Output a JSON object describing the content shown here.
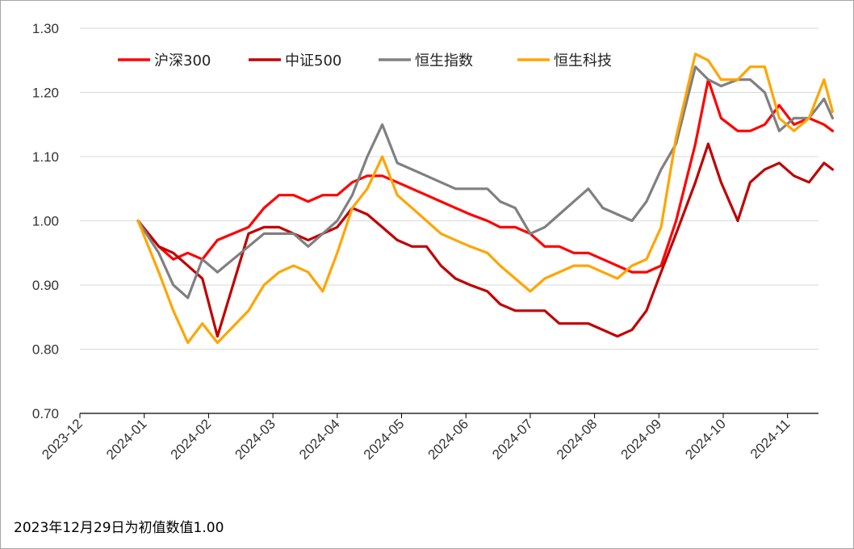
{
  "footnote": "2023年12月29日为初值数值1.00",
  "chart_data": {
    "type": "line",
    "title": "",
    "xlabel": "",
    "ylabel": "",
    "ylim": [
      0.7,
      1.3
    ],
    "yticks": [
      "0.70",
      "0.80",
      "0.90",
      "1.00",
      "1.10",
      "1.20",
      "1.30"
    ],
    "ytick_values": [
      0.7,
      0.8,
      0.9,
      1.0,
      1.1,
      1.2,
      1.3
    ],
    "xticks": [
      "2023-12",
      "2024-01",
      "2024-02",
      "2024-03",
      "2024-04",
      "2024-05",
      "2024-06",
      "2024-07",
      "2024-08",
      "2024-09",
      "2024-10",
      "2024-11"
    ],
    "grid": "horizontal",
    "legend_position": "top",
    "x": [
      "2023-12-29",
      "2024-01-08",
      "2024-01-15",
      "2024-01-22",
      "2024-01-29",
      "2024-02-05",
      "2024-02-19",
      "2024-02-26",
      "2024-03-04",
      "2024-03-11",
      "2024-03-18",
      "2024-03-25",
      "2024-04-01",
      "2024-04-08",
      "2024-04-15",
      "2024-04-22",
      "2024-04-29",
      "2024-05-06",
      "2024-05-13",
      "2024-05-20",
      "2024-05-27",
      "2024-06-03",
      "2024-06-11",
      "2024-06-17",
      "2024-06-24",
      "2024-07-01",
      "2024-07-08",
      "2024-07-15",
      "2024-07-22",
      "2024-07-29",
      "2024-08-05",
      "2024-08-12",
      "2024-08-19",
      "2024-08-26",
      "2024-09-02",
      "2024-09-09",
      "2024-09-18",
      "2024-09-24",
      "2024-09-30",
      "2024-10-08",
      "2024-10-14",
      "2024-10-21",
      "2024-10-28",
      "2024-11-04",
      "2024-11-11",
      "2024-11-18",
      "2024-11-22"
    ],
    "series": [
      {
        "name": "沪深300",
        "color": "#ff0000",
        "values": [
          1.0,
          0.96,
          0.94,
          0.95,
          0.94,
          0.97,
          0.99,
          1.02,
          1.04,
          1.04,
          1.03,
          1.04,
          1.04,
          1.06,
          1.07,
          1.07,
          1.06,
          1.05,
          1.04,
          1.03,
          1.02,
          1.01,
          1.0,
          0.99,
          0.99,
          0.98,
          0.96,
          0.96,
          0.95,
          0.95,
          0.94,
          0.93,
          0.92,
          0.92,
          0.93,
          1.0,
          1.12,
          1.22,
          1.16,
          1.14,
          1.14,
          1.15,
          1.18,
          1.15,
          1.16,
          1.15,
          1.14
        ]
      },
      {
        "name": "中证500",
        "color": "#c00000",
        "values": [
          1.0,
          0.96,
          0.95,
          0.93,
          0.91,
          0.82,
          0.98,
          0.99,
          0.99,
          0.98,
          0.97,
          0.98,
          0.99,
          1.02,
          1.01,
          0.99,
          0.97,
          0.96,
          0.96,
          0.93,
          0.91,
          0.9,
          0.89,
          0.87,
          0.86,
          0.86,
          0.86,
          0.84,
          0.84,
          0.84,
          0.83,
          0.82,
          0.83,
          0.86,
          0.92,
          0.98,
          1.06,
          1.12,
          1.06,
          1.0,
          1.06,
          1.08,
          1.09,
          1.07,
          1.06,
          1.09,
          1.08
        ]
      },
      {
        "name": "恒生指数",
        "color": "#808080",
        "values": [
          1.0,
          0.95,
          0.9,
          0.88,
          0.94,
          0.92,
          0.96,
          0.98,
          0.98,
          0.98,
          0.96,
          0.98,
          1.0,
          1.04,
          1.1,
          1.15,
          1.09,
          1.08,
          1.07,
          1.06,
          1.05,
          1.05,
          1.05,
          1.03,
          1.02,
          0.98,
          0.99,
          1.01,
          1.03,
          1.05,
          1.02,
          1.01,
          1.0,
          1.03,
          1.08,
          1.12,
          1.24,
          1.22,
          1.21,
          1.22,
          1.22,
          1.2,
          1.14,
          1.16,
          1.16,
          1.19,
          1.16
        ]
      },
      {
        "name": "恒生科技",
        "color": "#ffa500",
        "values": [
          1.0,
          0.92,
          0.86,
          0.81,
          0.84,
          0.81,
          0.86,
          0.9,
          0.92,
          0.93,
          0.92,
          0.89,
          0.95,
          1.02,
          1.05,
          1.1,
          1.04,
          1.02,
          1.0,
          0.98,
          0.97,
          0.96,
          0.95,
          0.93,
          0.91,
          0.89,
          0.91,
          0.92,
          0.93,
          0.93,
          0.92,
          0.91,
          0.93,
          0.94,
          0.99,
          1.13,
          1.26,
          1.25,
          1.22,
          1.22,
          1.24,
          1.24,
          1.16,
          1.14,
          1.16,
          1.22,
          1.17
        ]
      }
    ]
  }
}
